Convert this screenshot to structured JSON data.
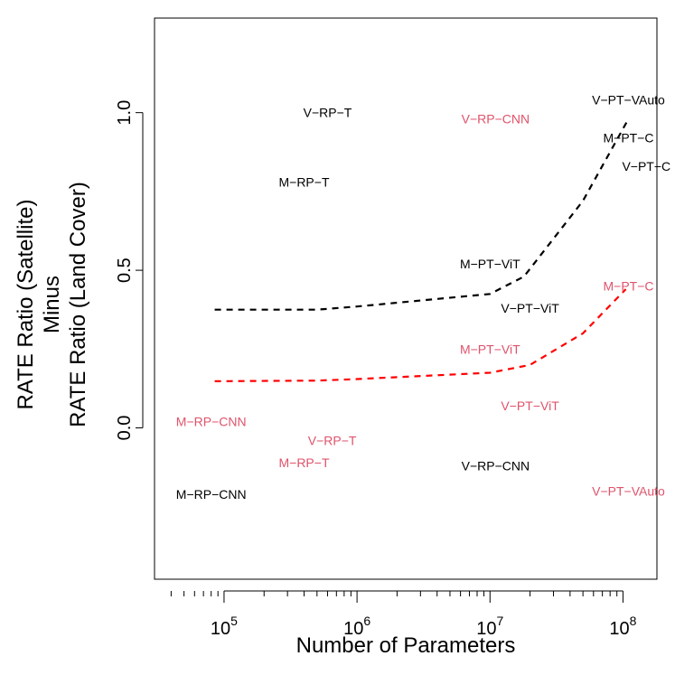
{
  "chart_data": {
    "type": "scatter",
    "title": "",
    "xlabel": "Number of Parameters",
    "ylabel_lines": [
      "RATE Ratio (Satellite)",
      "Minus",
      "RATE Ratio (Land Cover)"
    ],
    "x_scale": "log10",
    "xlim": [
      30000,
      180000000
    ],
    "ylim": [
      -0.48,
      1.3
    ],
    "x_ticks": [
      100000,
      1000000,
      10000000,
      100000000
    ],
    "x_tick_labels": [
      {
        "base": "10",
        "exp": "5"
      },
      {
        "base": "10",
        "exp": "6"
      },
      {
        "base": "10",
        "exp": "7"
      },
      {
        "base": "10",
        "exp": "8"
      }
    ],
    "y_ticks": [
      0.0,
      0.5,
      1.0
    ],
    "y_tick_labels": [
      "0.0",
      "0.5",
      "1.0"
    ],
    "grid": false,
    "colors": {
      "black": "#000000",
      "red": "#DF536B",
      "red_line": "#FF0000"
    },
    "point_labels": [
      {
        "text": "V−RP−T",
        "x": 600000,
        "y": 1.0,
        "color": "#000000"
      },
      {
        "text": "V−RP−CNN",
        "x": 11000000,
        "y": 0.98,
        "color": "#DF536B"
      },
      {
        "text": "V−PT−VAuto",
        "x": 110000000,
        "y": 1.04,
        "color": "#000000"
      },
      {
        "text": "M−PT−C",
        "x": 110000000,
        "y": 0.92,
        "color": "#000000"
      },
      {
        "text": "V−PT−C",
        "x": 150000000,
        "y": 0.83,
        "color": "#000000"
      },
      {
        "text": "M−RP−T",
        "x": 400000,
        "y": 0.78,
        "color": "#000000"
      },
      {
        "text": "M−PT−ViT",
        "x": 10000000,
        "y": 0.52,
        "color": "#000000"
      },
      {
        "text": "V−PT−ViT",
        "x": 20000000,
        "y": 0.38,
        "color": "#000000"
      },
      {
        "text": "M−PT−C",
        "x": 110000000,
        "y": 0.45,
        "color": "#DF536B"
      },
      {
        "text": "M−PT−ViT",
        "x": 10000000,
        "y": 0.25,
        "color": "#DF536B"
      },
      {
        "text": "V−PT−ViT",
        "x": 20000000,
        "y": 0.07,
        "color": "#DF536B"
      },
      {
        "text": "M−RP−CNN",
        "x": 80000,
        "y": 0.02,
        "color": "#DF536B"
      },
      {
        "text": "V−RP−T",
        "x": 650000,
        "y": -0.04,
        "color": "#DF536B"
      },
      {
        "text": "M−RP−T",
        "x": 400000,
        "y": -0.11,
        "color": "#DF536B"
      },
      {
        "text": "V−RP−CNN",
        "x": 11000000,
        "y": -0.12,
        "color": "#000000"
      },
      {
        "text": "M−RP−CNN",
        "x": 80000,
        "y": -0.21,
        "color": "#000000"
      },
      {
        "text": "V−PT−VAuto",
        "x": 110000000,
        "y": -0.2,
        "color": "#DF536B"
      }
    ],
    "series": [
      {
        "color": "#000000",
        "style": "dashed",
        "points": [
          [
            85000,
            0.375
          ],
          [
            500000,
            0.375
          ],
          [
            1000000,
            0.385
          ],
          [
            10000000,
            0.425
          ],
          [
            18000000,
            0.48
          ],
          [
            50000000,
            0.72
          ],
          [
            110000000,
            0.98
          ]
        ]
      },
      {
        "color": "#FF0000",
        "style": "dashed",
        "points": [
          [
            85000,
            0.148
          ],
          [
            500000,
            0.15
          ],
          [
            1000000,
            0.155
          ],
          [
            10000000,
            0.175
          ],
          [
            20000000,
            0.2
          ],
          [
            50000000,
            0.3
          ],
          [
            105000000,
            0.44
          ]
        ]
      }
    ]
  }
}
